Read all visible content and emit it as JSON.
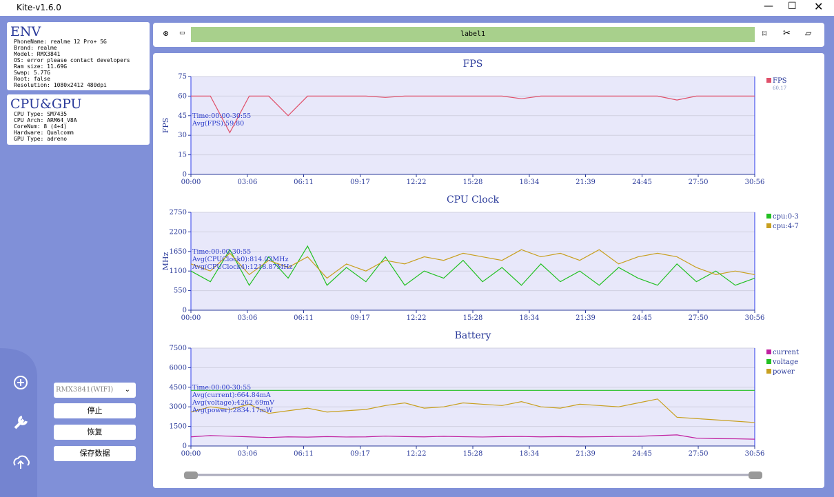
{
  "window": {
    "title": "Kite-v1.6.0"
  },
  "env": {
    "title": "ENV",
    "lines": [
      "PhoneName: realme 12 Pro+ 5G",
      "Brand: realme",
      "Model: RMX3841",
      "OS: error please contact developers",
      "Ram size: 11.69G",
      "Swap: 5.77G",
      "Root: false",
      "Resolution: 1080x2412 480dpi"
    ]
  },
  "cpu_gpu": {
    "title": "CPU&GPU",
    "lines": [
      "CPU Type: SM7435",
      "CPU Arch: ARM64_V8A",
      "CoreNum: 8 (4+4)",
      "Hardware: Qualcomm",
      "GPU Type: adreno"
    ]
  },
  "toolbar": {
    "label": "label1"
  },
  "controls": {
    "device": "RMX3841(WIFI)",
    "buttons": [
      "停止",
      "恢复",
      "保存数据"
    ]
  },
  "chart_data": [
    {
      "type": "line",
      "title": "FPS",
      "ylabel": "FPS",
      "xlim": [
        0,
        1856
      ],
      "ylim": [
        0,
        75
      ],
      "yticks": [
        0,
        15,
        30,
        45,
        60,
        75
      ],
      "xticks": [
        {
          "value": 0,
          "label": "00:00"
        },
        {
          "value": 186,
          "label": "03:06"
        },
        {
          "value": 371,
          "label": "06:11"
        },
        {
          "value": 557,
          "label": "09:17"
        },
        {
          "value": 742,
          "label": "12:22"
        },
        {
          "value": 928,
          "label": "15:28"
        },
        {
          "value": 1114,
          "label": "18:34"
        },
        {
          "value": 1299,
          "label": "21:39"
        },
        {
          "value": 1485,
          "label": "24:45"
        },
        {
          "value": 1670,
          "label": "27:50"
        },
        {
          "value": 1856,
          "label": "30:56"
        }
      ],
      "x": [
        0,
        64,
        128,
        192,
        256,
        320,
        384,
        448,
        512,
        576,
        640,
        704,
        768,
        832,
        896,
        960,
        1024,
        1088,
        1152,
        1216,
        1280,
        1344,
        1408,
        1472,
        1536,
        1600,
        1664,
        1728,
        1792,
        1856
      ],
      "annotations": [
        "Time:00:00-30:55",
        "Avg(FPS):59.80"
      ],
      "series": [
        {
          "name": "FPS",
          "color": "#e0506a",
          "current_value": 60.17,
          "values": [
            60,
            60,
            32,
            60,
            60,
            45,
            60,
            60,
            60,
            60,
            59,
            60,
            60,
            60,
            60,
            60,
            60,
            58,
            60,
            60,
            60,
            60,
            60,
            60,
            60,
            57,
            60,
            60,
            60,
            60
          ]
        }
      ]
    },
    {
      "type": "line",
      "title": "CPU Clock",
      "ylabel": "MHz",
      "xlim": [
        0,
        1856
      ],
      "ylim": [
        0,
        2750
      ],
      "yticks": [
        0,
        550,
        1100,
        1650,
        2200,
        2750
      ],
      "xticks": [
        {
          "value": 0,
          "label": "00:00"
        },
        {
          "value": 186,
          "label": "03:06"
        },
        {
          "value": 371,
          "label": "06:11"
        },
        {
          "value": 557,
          "label": "09:17"
        },
        {
          "value": 742,
          "label": "12:22"
        },
        {
          "value": 928,
          "label": "15:28"
        },
        {
          "value": 1114,
          "label": "18:34"
        },
        {
          "value": 1299,
          "label": "21:39"
        },
        {
          "value": 1485,
          "label": "24:45"
        },
        {
          "value": 1670,
          "label": "27:50"
        },
        {
          "value": 1856,
          "label": "30:56"
        }
      ],
      "x": [
        0,
        64,
        128,
        192,
        256,
        320,
        384,
        448,
        512,
        576,
        640,
        704,
        768,
        832,
        896,
        960,
        1024,
        1088,
        1152,
        1216,
        1280,
        1344,
        1408,
        1472,
        1536,
        1600,
        1664,
        1728,
        1792,
        1856
      ],
      "annotations": [
        "Time:00:00-30:55",
        "Avg(CPUClock0):814.02MHz",
        "Avg(CPUClock4):1218.87MHz"
      ],
      "series": [
        {
          "name": "cpu:0-3",
          "color": "#22c022",
          "values": [
            1100,
            800,
            1700,
            700,
            1500,
            900,
            1800,
            700,
            1200,
            800,
            1500,
            700,
            1100,
            900,
            1400,
            800,
            1200,
            700,
            1300,
            800,
            1100,
            700,
            1200,
            900,
            700,
            1300,
            800,
            1100,
            700,
            900
          ]
        },
        {
          "name": "cpu:4-7",
          "color": "#c8a020",
          "values": [
            1300,
            1100,
            1600,
            1000,
            1400,
            1200,
            1500,
            900,
            1300,
            1100,
            1400,
            1300,
            1500,
            1400,
            1600,
            1500,
            1400,
            1700,
            1500,
            1600,
            1400,
            1700,
            1300,
            1500,
            1600,
            1500,
            1200,
            1000,
            1100,
            1000
          ]
        }
      ]
    },
    {
      "type": "line",
      "title": "Battery",
      "xlim": [
        0,
        1856
      ],
      "ylim": [
        0,
        7500
      ],
      "yticks": [
        0,
        1500,
        3000,
        4500,
        6000,
        7500
      ],
      "xticks": [
        {
          "value": 0,
          "label": "00:00"
        },
        {
          "value": 186,
          "label": "03:06"
        },
        {
          "value": 371,
          "label": "06:11"
        },
        {
          "value": 557,
          "label": "09:17"
        },
        {
          "value": 742,
          "label": "12:22"
        },
        {
          "value": 928,
          "label": "15:28"
        },
        {
          "value": 1114,
          "label": "18:34"
        },
        {
          "value": 1299,
          "label": "21:39"
        },
        {
          "value": 1485,
          "label": "24:45"
        },
        {
          "value": 1670,
          "label": "27:50"
        },
        {
          "value": 1856,
          "label": "30:56"
        }
      ],
      "x": [
        0,
        64,
        128,
        192,
        256,
        320,
        384,
        448,
        512,
        576,
        640,
        704,
        768,
        832,
        896,
        960,
        1024,
        1088,
        1152,
        1216,
        1280,
        1344,
        1408,
        1472,
        1536,
        1600,
        1664,
        1728,
        1792,
        1856
      ],
      "annotations": [
        "Time:00:00-30:55",
        "Avg(current):664.84mA",
        "Avg(voltage):4262.69mV",
        "Avg(power):2834.17mW"
      ],
      "series": [
        {
          "name": "current",
          "color": "#c020a0",
          "values": [
            700,
            800,
            750,
            700,
            650,
            700,
            680,
            720,
            690,
            700,
            760,
            720,
            700,
            740,
            710,
            690,
            720,
            730,
            700,
            720,
            700,
            710,
            730,
            740,
            800,
            850,
            600,
            560,
            550,
            520
          ]
        },
        {
          "name": "voltage",
          "color": "#22c022",
          "values": [
            4262,
            4262,
            4262,
            4262,
            4262,
            4262,
            4262,
            4262,
            4262,
            4262,
            4262,
            4262,
            4262,
            4262,
            4262,
            4262,
            4262,
            4262,
            4262,
            4262,
            4262,
            4262,
            4262,
            4262,
            4262,
            4262,
            4262,
            4262,
            4262,
            4262
          ]
        },
        {
          "name": "power",
          "color": "#c8a020",
          "values": [
            2600,
            3000,
            2800,
            3200,
            2500,
            2700,
            2900,
            2600,
            2700,
            2800,
            3100,
            3300,
            2900,
            3000,
            3300,
            3200,
            3100,
            3400,
            3000,
            2900,
            3200,
            3100,
            3000,
            3300,
            3600,
            2200,
            2100,
            2000,
            1900,
            1800
          ]
        }
      ]
    }
  ]
}
